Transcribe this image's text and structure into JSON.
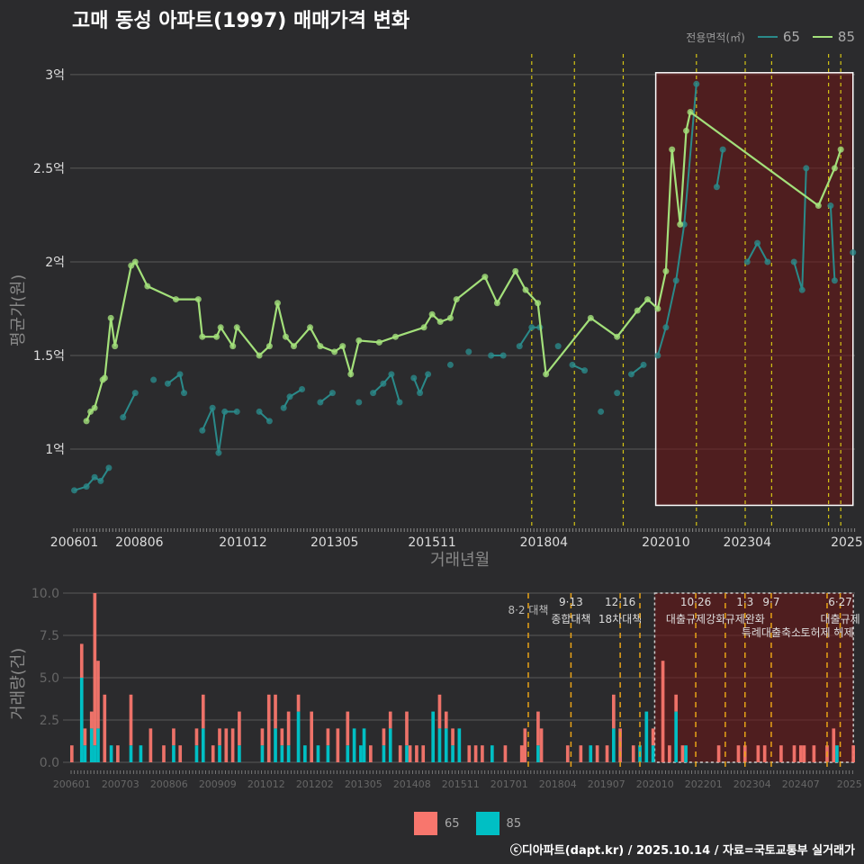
{
  "title": "고매 동성 아파트(1997) 매매가격 변화",
  "legend": {
    "title": "전용면적(㎡)",
    "items": [
      {
        "label": "65",
        "color": "#2a8a8a"
      },
      {
        "label": "85",
        "color": "#a3e07a"
      }
    ]
  },
  "bar_legend": {
    "items": [
      {
        "label": "65",
        "color": "#f8766d"
      },
      {
        "label": "85",
        "color": "#00bfc4"
      }
    ]
  },
  "caption": "ⓒ디아파트(dapt.kr) / 2025.10.14 / 자료=국토교통부 실거래가",
  "chart_data": [
    {
      "type": "line",
      "title": "고매 동성 아파트(1997) 매매가격 변화",
      "xlabel": "거래년월",
      "ylabel": "평균가(원)",
      "x_unit": "approximate year position on month axis",
      "xlim": [
        2005.9,
        2025.2
      ],
      "ylim": [
        0.635,
        3.11
      ],
      "yticks": [
        {
          "v": 1,
          "label": "1억"
        },
        {
          "v": 1.5,
          "label": "1.5억"
        },
        {
          "v": 2,
          "label": "2억"
        },
        {
          "v": 2.5,
          "label": "2.5억"
        },
        {
          "v": 3,
          "label": "3억"
        }
      ],
      "xticks": [
        {
          "v": 2006.0,
          "label": "200601"
        },
        {
          "v": 2007.6,
          "label": "200806"
        },
        {
          "v": 2010.15,
          "label": "201012"
        },
        {
          "v": 2012.4,
          "label": "201305"
        },
        {
          "v": 2014.8,
          "label": "201511"
        },
        {
          "v": 2017.55,
          "label": "201804"
        },
        {
          "v": 2020.55,
          "label": "202010"
        },
        {
          "v": 2022.55,
          "label": "202304"
        },
        {
          "v": 2025.0,
          "label": "2025"
        }
      ],
      "grid": true,
      "legend_position": "top-right",
      "policy_lines": [
        2017.25,
        2018.3,
        2019.5,
        2021.3,
        2022.5,
        2023.15,
        2024.55,
        2024.85
      ],
      "highlight": {
        "x": [
          2020.3,
          2025.15
        ],
        "y": [
          0.7,
          3.01
        ]
      },
      "series": [
        {
          "name": "85",
          "color": "#a3e07a",
          "points": [
            [
              2006.3,
              1.15
            ],
            [
              2006.4,
              1.2
            ],
            [
              2006.5,
              1.22
            ],
            [
              2006.7,
              1.37
            ],
            [
              2006.75,
              1.38
            ],
            [
              2006.9,
              1.7
            ],
            [
              2007.0,
              1.55
            ],
            [
              2007.4,
              1.98
            ],
            [
              2007.5,
              2.0
            ],
            [
              2007.8,
              1.87
            ],
            [
              2008.5,
              1.8
            ],
            [
              2009.05,
              1.8
            ],
            [
              2009.15,
              1.6
            ],
            [
              2009.5,
              1.6
            ],
            [
              2009.6,
              1.65
            ],
            [
              2009.9,
              1.55
            ],
            [
              2010.0,
              1.65
            ],
            [
              2010.55,
              1.5
            ],
            [
              2010.8,
              1.55
            ],
            [
              2011.0,
              1.78
            ],
            [
              2011.2,
              1.6
            ],
            [
              2011.4,
              1.55
            ],
            [
              2011.8,
              1.65
            ],
            [
              2012.05,
              1.55
            ],
            [
              2012.4,
              1.52
            ],
            [
              2012.6,
              1.55
            ],
            [
              2012.8,
              1.4
            ],
            [
              2013.0,
              1.58
            ],
            [
              2013.5,
              1.57
            ],
            [
              2013.9,
              1.6
            ],
            [
              2014.6,
              1.65
            ],
            [
              2014.8,
              1.72
            ],
            [
              2015.0,
              1.68
            ],
            [
              2015.25,
              1.7
            ],
            [
              2015.4,
              1.8
            ],
            [
              2016.1,
              1.92
            ],
            [
              2016.4,
              1.78
            ],
            [
              2016.85,
              1.95
            ],
            [
              2017.1,
              1.85
            ],
            [
              2017.4,
              1.78
            ],
            [
              2017.6,
              1.4
            ],
            [
              2018.7,
              1.7
            ],
            [
              2019.35,
              1.6
            ],
            [
              2019.85,
              1.74
            ],
            [
              2020.1,
              1.8
            ],
            [
              2020.35,
              1.75
            ],
            [
              2020.55,
              1.95
            ],
            [
              2020.7,
              2.6
            ],
            [
              2020.9,
              2.2
            ],
            [
              2021.05,
              2.7
            ],
            [
              2021.15,
              2.8
            ],
            [
              2024.3,
              2.3
            ],
            [
              2024.7,
              2.5
            ],
            [
              2024.85,
              2.6
            ]
          ]
        },
        {
          "name": "65",
          "color": "#2a8a8a",
          "points": [
            [
              2006.0,
              0.78
            ],
            [
              2006.3,
              0.8
            ],
            [
              2006.5,
              0.85
            ],
            [
              2006.65,
              0.83
            ],
            [
              2006.85,
              0.9
            ],
            [
              2007.2,
              1.17
            ],
            [
              2007.5,
              1.3
            ],
            [
              2007.95,
              1.37
            ],
            [
              2008.3,
              1.35
            ],
            [
              2008.6,
              1.4
            ],
            [
              2008.7,
              1.3
            ],
            [
              2009.15,
              1.1
            ],
            [
              2009.4,
              1.22
            ],
            [
              2009.55,
              0.98
            ],
            [
              2009.7,
              1.2
            ],
            [
              2010.0,
              1.2
            ],
            [
              2010.55,
              1.2
            ],
            [
              2010.8,
              1.15
            ],
            [
              2011.15,
              1.22
            ],
            [
              2011.3,
              1.28
            ],
            [
              2011.6,
              1.32
            ],
            [
              2012.05,
              1.25
            ],
            [
              2012.35,
              1.3
            ],
            [
              2013.0,
              1.25
            ],
            [
              2013.35,
              1.3
            ],
            [
              2013.6,
              1.35
            ],
            [
              2013.8,
              1.4
            ],
            [
              2014.0,
              1.25
            ],
            [
              2014.35,
              1.38
            ],
            [
              2014.5,
              1.3
            ],
            [
              2014.7,
              1.4
            ],
            [
              2015.25,
              1.45
            ],
            [
              2015.7,
              1.52
            ],
            [
              2016.25,
              1.5
            ],
            [
              2016.55,
              1.5
            ],
            [
              2016.95,
              1.55
            ],
            [
              2017.25,
              1.65
            ],
            [
              2017.45,
              1.65
            ],
            [
              2017.9,
              1.55
            ],
            [
              2018.25,
              1.45
            ],
            [
              2018.55,
              1.42
            ],
            [
              2018.95,
              1.2
            ],
            [
              2019.35,
              1.3
            ],
            [
              2019.7,
              1.4
            ],
            [
              2020.0,
              1.45
            ],
            [
              2020.35,
              1.5
            ],
            [
              2020.55,
              1.65
            ],
            [
              2020.8,
              1.9
            ],
            [
              2021.0,
              2.2
            ],
            [
              2021.3,
              2.95
            ],
            [
              2021.8,
              2.4
            ],
            [
              2021.95,
              2.6
            ],
            [
              2022.55,
              2.0
            ],
            [
              2022.8,
              2.1
            ],
            [
              2023.05,
              2.0
            ],
            [
              2023.7,
              2.0
            ],
            [
              2023.9,
              1.85
            ],
            [
              2024.0,
              2.5
            ],
            [
              2024.6,
              2.3
            ],
            [
              2024.7,
              1.9
            ],
            [
              2025.15,
              2.05
            ]
          ]
        }
      ]
    },
    {
      "type": "bar",
      "ylabel": "거래량(건)",
      "x_unit": "month index from 200601",
      "xlim": [
        -0.5,
        238.5
      ],
      "ylim": [
        0,
        10
      ],
      "yticks": [
        {
          "v": 0,
          "label": "0.0"
        },
        {
          "v": 2.5,
          "label": "2.5"
        },
        {
          "v": 5,
          "label": "5.0"
        },
        {
          "v": 7.5,
          "label": "7.5"
        },
        {
          "v": 10,
          "label": "10.0"
        }
      ],
      "xticks": [
        {
          "v": 0,
          "label": "200601"
        },
        {
          "v": 14.8,
          "label": "200703"
        },
        {
          "v": 29.6,
          "label": "200806"
        },
        {
          "v": 44.4,
          "label": "200909"
        },
        {
          "v": 59.2,
          "label": "201012"
        },
        {
          "v": 74,
          "label": "201202"
        },
        {
          "v": 88.8,
          "label": "201305"
        },
        {
          "v": 103.6,
          "label": "201408"
        },
        {
          "v": 118.4,
          "label": "201511"
        },
        {
          "v": 133.2,
          "label": "201701"
        },
        {
          "v": 148,
          "label": "201804"
        },
        {
          "v": 162.8,
          "label": "201907"
        },
        {
          "v": 177.6,
          "label": "202010"
        },
        {
          "v": 192.4,
          "label": "202201"
        },
        {
          "v": 207.2,
          "label": "202304"
        },
        {
          "v": 222,
          "label": "202407"
        },
        {
          "v": 236.8,
          "label": "2025"
        }
      ],
      "grid": true,
      "legend_position": "bottom",
      "highlight": {
        "x": [
          177.5,
          238
        ],
        "y": [
          0,
          10
        ]
      },
      "policy_lines": [
        {
          "x": 139,
          "date": "8·2 대책",
          "label": ""
        },
        {
          "x": 152,
          "date": "9·13",
          "label": "종합대책"
        },
        {
          "x": 167,
          "date": "12·16",
          "label": "18차대책"
        },
        {
          "x": 173,
          "date": "",
          "label": ""
        },
        {
          "x": 190,
          "date": "10·26",
          "label": "대출규제강화"
        },
        {
          "x": 199,
          "date": "",
          "label": ""
        },
        {
          "x": 205,
          "date": "1·3",
          "label": "규제완화"
        },
        {
          "x": 213,
          "date": "9·7",
          "label": "특례대출축소"
        },
        {
          "x": 230,
          "date": "",
          "label": "토허제 해제"
        },
        {
          "x": 234,
          "date": "6·27",
          "label": "대출규제"
        }
      ],
      "series_names": [
        "65",
        "85"
      ],
      "bars": [
        [
          0,
          1,
          0
        ],
        [
          3,
          2,
          5
        ],
        [
          4,
          1,
          1
        ],
        [
          6,
          1,
          2
        ],
        [
          7,
          9,
          1
        ],
        [
          8,
          4,
          2
        ],
        [
          10,
          4,
          0
        ],
        [
          12,
          0,
          1
        ],
        [
          14,
          1,
          0
        ],
        [
          18,
          3,
          1
        ],
        [
          21,
          0,
          1
        ],
        [
          24,
          2,
          0
        ],
        [
          28,
          1,
          0
        ],
        [
          31,
          1,
          1
        ],
        [
          33,
          1,
          0
        ],
        [
          38,
          1,
          1
        ],
        [
          40,
          2,
          2
        ],
        [
          43,
          1,
          0
        ],
        [
          45,
          1,
          1
        ],
        [
          47,
          2,
          0
        ],
        [
          49,
          2,
          0
        ],
        [
          51,
          2,
          1
        ],
        [
          58,
          1,
          1
        ],
        [
          60,
          4,
          0
        ],
        [
          62,
          2,
          2
        ],
        [
          64,
          1,
          1
        ],
        [
          66,
          2,
          1
        ],
        [
          69,
          1,
          3
        ],
        [
          71,
          0,
          1
        ],
        [
          73,
          3,
          0
        ],
        [
          75,
          0,
          1
        ],
        [
          78,
          1,
          1
        ],
        [
          81,
          2,
          0
        ],
        [
          84,
          2,
          1
        ],
        [
          86,
          0,
          2
        ],
        [
          88,
          0,
          1
        ],
        [
          89,
          0,
          2
        ],
        [
          91,
          1,
          0
        ],
        [
          95,
          1,
          1
        ],
        [
          97,
          1,
          2
        ],
        [
          100,
          1,
          0
        ],
        [
          102,
          2,
          1
        ],
        [
          103,
          1,
          0
        ],
        [
          105,
          1,
          0
        ],
        [
          107,
          1,
          0
        ],
        [
          110,
          0,
          3
        ],
        [
          112,
          2,
          2
        ],
        [
          114,
          1,
          2
        ],
        [
          116,
          1,
          1
        ],
        [
          118,
          0,
          2
        ],
        [
          121,
          1,
          0
        ],
        [
          123,
          1,
          0
        ],
        [
          125,
          1,
          0
        ],
        [
          128,
          0,
          1
        ],
        [
          132,
          1,
          0
        ],
        [
          137,
          1,
          0
        ],
        [
          138,
          2,
          0
        ],
        [
          142,
          2,
          1
        ],
        [
          143,
          2,
          0
        ],
        [
          151,
          1,
          0
        ],
        [
          155,
          1,
          0
        ],
        [
          158,
          0,
          1
        ],
        [
          160,
          1,
          0
        ],
        [
          163,
          1,
          0
        ],
        [
          165,
          2,
          2
        ],
        [
          167,
          2,
          0
        ],
        [
          171,
          1,
          0
        ],
        [
          173,
          0,
          1
        ],
        [
          175,
          0,
          3
        ],
        [
          177,
          1,
          1
        ],
        [
          180,
          6,
          0
        ],
        [
          182,
          1,
          0
        ],
        [
          184,
          1,
          3
        ],
        [
          186,
          1,
          0
        ],
        [
          187,
          0,
          1
        ],
        [
          197,
          1,
          0
        ],
        [
          203,
          1,
          0
        ],
        [
          205,
          1,
          0
        ],
        [
          209,
          1,
          0
        ],
        [
          211,
          1,
          0
        ],
        [
          216,
          1,
          0
        ],
        [
          220,
          1,
          0
        ],
        [
          222,
          1,
          0
        ],
        [
          223,
          1,
          0
        ],
        [
          226,
          1,
          0
        ],
        [
          230,
          1,
          0
        ],
        [
          232,
          2,
          0
        ],
        [
          233,
          0,
          1
        ],
        [
          238,
          1,
          0
        ]
      ]
    }
  ]
}
